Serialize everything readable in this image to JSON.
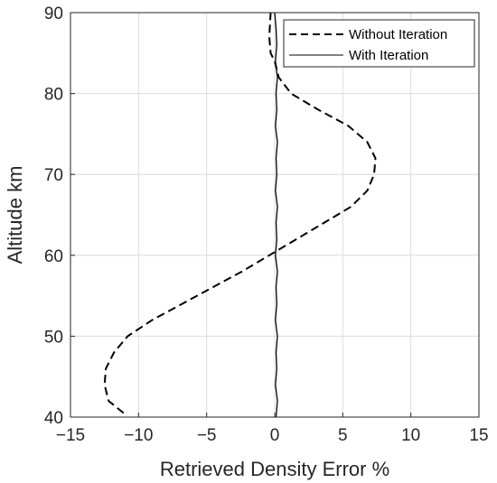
{
  "chart_data": {
    "type": "line",
    "title": "",
    "xlabel": "Retrieved Density Error %",
    "ylabel": "Altitude km",
    "xlim": [
      -15,
      15
    ],
    "ylim": [
      40,
      90
    ],
    "xticks": [
      -15,
      -10,
      -5,
      0,
      5,
      10,
      15
    ],
    "yticks": [
      40,
      50,
      60,
      70,
      80,
      90
    ],
    "xtick_labels": [
      "−15",
      "−10",
      "−5",
      "0",
      "5",
      "10",
      "15"
    ],
    "ytick_labels": [
      "40",
      "50",
      "60",
      "70",
      "80",
      "90"
    ],
    "grid": true,
    "legend_position": "top-right",
    "series": [
      {
        "name": "Without Iteration",
        "style": "dashed",
        "color": "#000000",
        "x": [
          -11.1,
          -12.2,
          -12.5,
          -12.4,
          -11.8,
          -10.8,
          -9.0,
          -6.8,
          -4.6,
          -2.4,
          -0.4,
          1.6,
          3.6,
          5.6,
          6.8,
          7.3,
          7.4,
          6.8,
          5.4,
          3.2,
          1.2,
          0.3,
          0.0,
          -0.3,
          -0.4,
          -0.3
        ],
        "y": [
          40.5,
          42,
          44,
          46,
          48,
          50,
          52,
          54,
          56,
          58,
          60,
          62,
          64,
          66,
          68,
          70,
          72,
          74,
          76,
          78,
          80,
          82,
          84,
          85,
          87,
          90
        ]
      },
      {
        "name": "With Iteration",
        "style": "solid",
        "color": "#000000",
        "x": [
          0.1,
          0.2,
          0.05,
          0.15,
          0.1,
          0.2,
          0.05,
          0.15,
          0.1,
          0.2,
          0.05,
          0.15,
          0.1,
          0.2,
          0.05,
          0.15,
          0.1,
          0.2,
          0.05,
          0.15,
          0.1,
          0.2,
          0.05,
          0.15,
          0.1,
          0.0
        ],
        "y": [
          40,
          42,
          44,
          46,
          48,
          50,
          52,
          54,
          56,
          58,
          60,
          62,
          64,
          66,
          68,
          70,
          72,
          74,
          76,
          78,
          80,
          82,
          84,
          86,
          88,
          90
        ]
      }
    ]
  },
  "colors": {
    "axis": "#262626",
    "grid": "#dcdcdc",
    "line": "#000000",
    "background": "#ffffff"
  }
}
